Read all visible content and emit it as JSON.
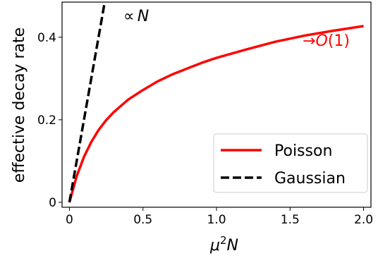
{
  "chart_data": {
    "type": "line",
    "title": "",
    "xlabel": {
      "mu": "μ",
      "sup": "2",
      "n": "N"
    },
    "ylabel": "effective decay rate",
    "xlim": [
      -0.05,
      2.05
    ],
    "ylim": [
      -0.012,
      0.485
    ],
    "xticks": [
      0,
      0.5,
      1.0,
      1.5,
      2.0
    ],
    "xtick_labels": [
      "0",
      "0.5",
      "1.0",
      "1.5",
      "2.0"
    ],
    "yticks": [
      0,
      0.2,
      0.4
    ],
    "ytick_labels": [
      "0",
      "0.2",
      "0.4"
    ],
    "grid": false,
    "legend_position": "lower-right",
    "series": [
      {
        "name": "Poisson",
        "style": "solid",
        "color": "#ff0000",
        "x": [
          0,
          0.05,
          0.1,
          0.15,
          0.2,
          0.25,
          0.3,
          0.4,
          0.5,
          0.6,
          0.7,
          0.8,
          0.9,
          1.0,
          1.2,
          1.4,
          1.6,
          1.8,
          2.0
        ],
        "y": [
          0,
          0.064,
          0.111,
          0.147,
          0.176,
          0.199,
          0.218,
          0.249,
          0.272,
          0.293,
          0.31,
          0.324,
          0.338,
          0.35,
          0.37,
          0.389,
          0.404,
          0.416,
          0.427
        ]
      },
      {
        "name": "Gaussian",
        "style": "dashed",
        "color": "#000000",
        "x": [
          0,
          0.24
        ],
        "y": [
          0,
          0.485
        ]
      }
    ],
    "annotations": [
      {
        "prefix": "∝",
        "var": "N",
        "color": "#000000"
      },
      {
        "prefix": "→",
        "var": "O",
        "suffix": "(1)",
        "color": "#ff0000"
      }
    ]
  }
}
